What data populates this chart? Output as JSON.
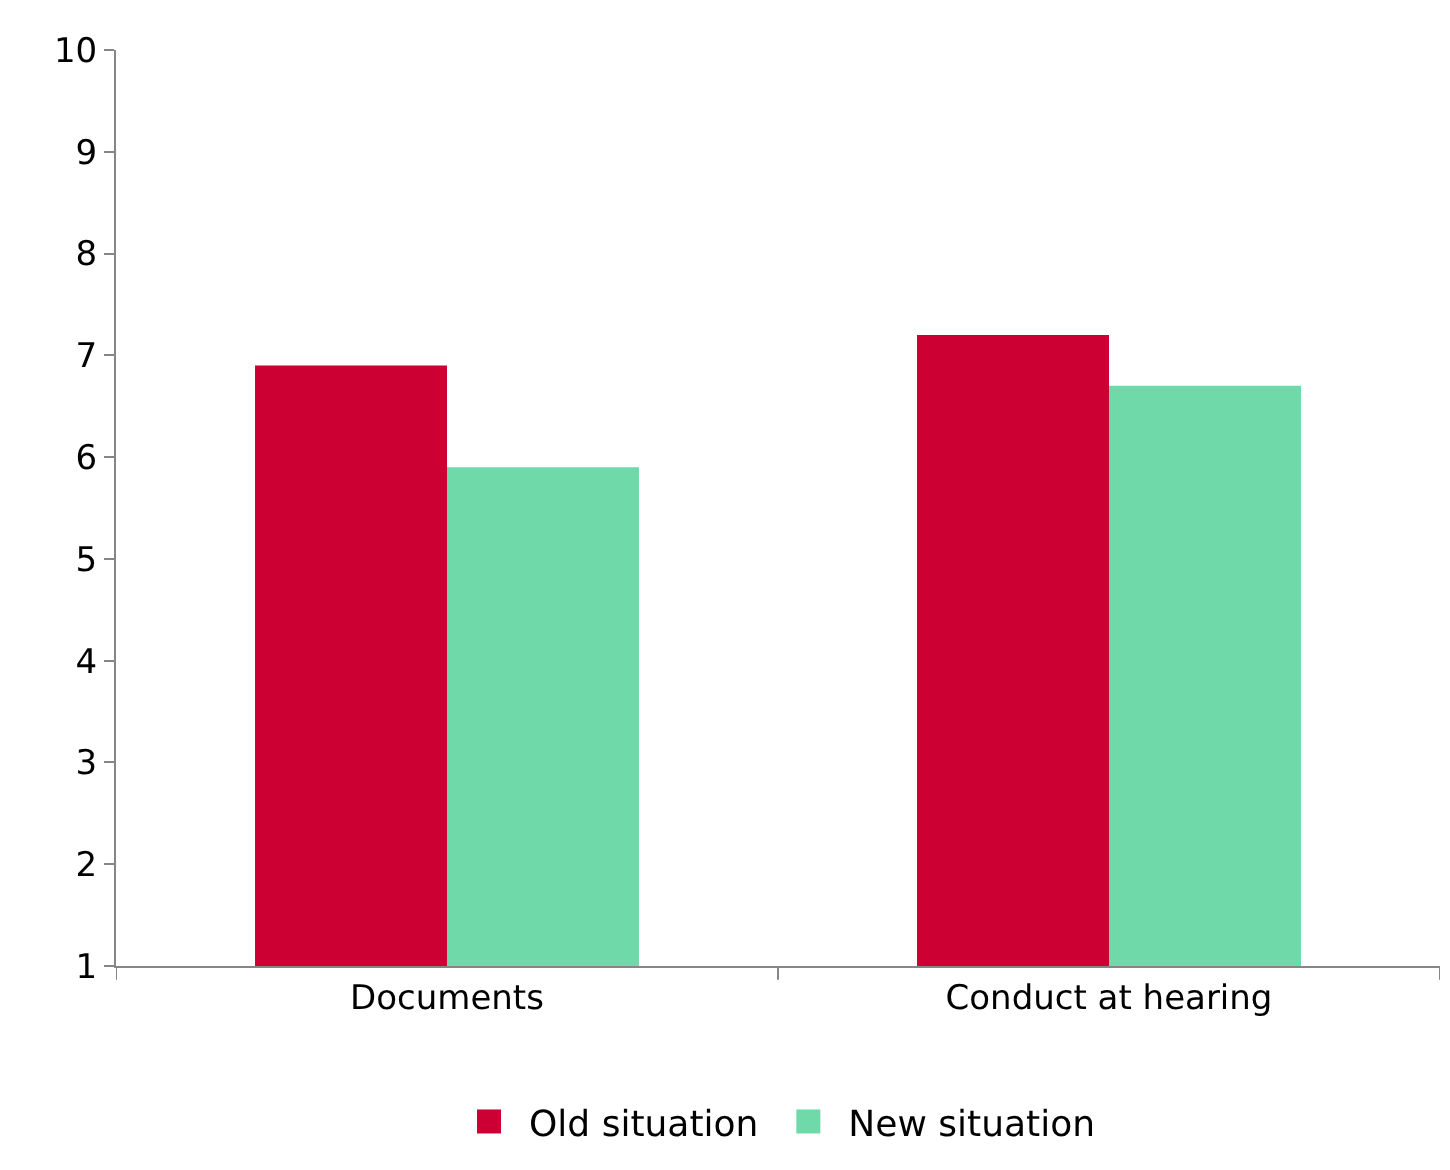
{
  "chart_data": {
    "type": "bar",
    "categories": [
      "Documents",
      "Conduct at hearing"
    ],
    "series": [
      {
        "name": "Old situation",
        "color": "#cc0033",
        "values": [
          6.9,
          7.2
        ]
      },
      {
        "name": "New situation",
        "color": "#6fd9aa",
        "values": [
          5.9,
          6.7
        ]
      }
    ],
    "ylim": [
      1,
      10
    ],
    "yticks": [
      1,
      2,
      3,
      4,
      5,
      6,
      7,
      8,
      9,
      10
    ],
    "legend": "bottom"
  }
}
